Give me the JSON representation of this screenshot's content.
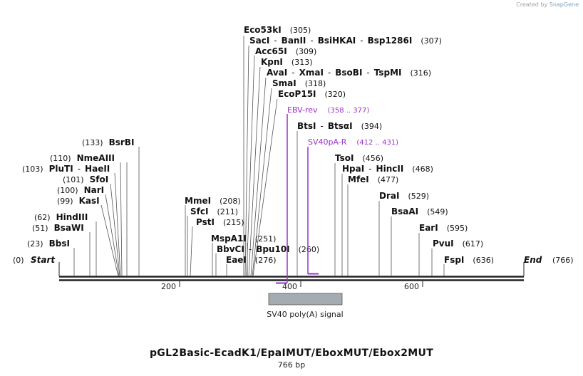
{
  "credit": {
    "prefix": "Created by",
    "brand": "SnapGene"
  },
  "plasmid": {
    "name": "pGL2Basic-EcadK1/EpaIMUT/EboxMUT/Ebox2MUT",
    "size_label": "766 bp",
    "length": 766
  },
  "ends": [
    {
      "label": "Start",
      "pos": "(0)"
    },
    {
      "label": "End",
      "pos": "(766)"
    }
  ],
  "ticks": [
    "200",
    "400",
    "600"
  ],
  "enzymes": [
    {
      "text": "BbsI",
      "pos": "(23)"
    },
    {
      "text": "BsaWI",
      "pos": "(51)"
    },
    {
      "text": "HindIII",
      "pos": "(62)"
    },
    {
      "text": "KasI",
      "pos": "(99)"
    },
    {
      "text": "NarI",
      "pos": "(100)"
    },
    {
      "text": "SfoI",
      "pos": "(101)"
    },
    {
      "text": "PluTI",
      "sep": "-",
      "text2": "HaeII",
      "pos": "(103)"
    },
    {
      "text": "NmeAIII",
      "pos": "(110)"
    },
    {
      "text": "BsrBI",
      "pos": "(133)"
    },
    {
      "text": "MmeI",
      "pos": "(208)"
    },
    {
      "text": "SfcI",
      "pos": "(211)"
    },
    {
      "text": "PstI",
      "pos": "(215)"
    },
    {
      "text": "MspA1I",
      "pos": "(251)"
    },
    {
      "text": "BbvCI",
      "sep": "-",
      "text2": "Bpu10I",
      "pos": "(260)"
    },
    {
      "text": "EaeI",
      "pos": "(276)"
    },
    {
      "text": "Eco53kI",
      "pos": "(305)"
    },
    {
      "text": "SacI",
      "sep": "-",
      "text2": "BanII",
      "sep2": "-",
      "text3": "BsiHKAI",
      "sep3": "-",
      "text4": "Bsp1286I",
      "pos": "(307)"
    },
    {
      "text": "Acc65I",
      "pos": "(309)"
    },
    {
      "text": "KpnI",
      "pos": "(313)"
    },
    {
      "text": "AvaI",
      "sep": "-",
      "text2": "XmaI",
      "sep2": "-",
      "text3": "BsoBI",
      "sep3": "-",
      "text4": "TspMI",
      "pos": "(316)"
    },
    {
      "text": "SmaI",
      "pos": "(318)"
    },
    {
      "text": "EcoP15I",
      "pos": "(320)"
    },
    {
      "text": "BtsI",
      "sep": "-",
      "text2": "BtsαI",
      "pos": "(394)"
    },
    {
      "text": "TsoI",
      "pos": "(456)"
    },
    {
      "text": "HpaI",
      "sep": "-",
      "text2": "HincII",
      "pos": "(468)"
    },
    {
      "text": "MfeI",
      "pos": "(477)"
    },
    {
      "text": "DraI",
      "pos": "(529)"
    },
    {
      "text": "BsaAI",
      "pos": "(549)"
    },
    {
      "text": "EarI",
      "pos": "(595)"
    },
    {
      "text": "PvuI",
      "pos": "(617)"
    },
    {
      "text": "FspI",
      "pos": "(636)"
    }
  ],
  "primers": [
    {
      "name": "EBV-rev",
      "range": "(358 .. 377)"
    },
    {
      "name": "SV40pA-R",
      "range": "(412 .. 431)"
    }
  ],
  "feature": {
    "label": "SV40 poly(A) signal"
  },
  "colors": {
    "primer": "#9b30c8",
    "feature_fill": "#a4abb1",
    "line": "#222222"
  }
}
